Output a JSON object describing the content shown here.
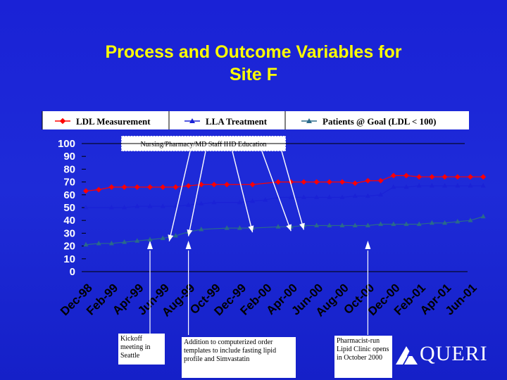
{
  "title": {
    "line1": "Process and Outcome Variables for",
    "line2": "Site F"
  },
  "chart_data": {
    "type": "line",
    "categories": [
      "Dec-98",
      "Feb-99",
      "Apr-99",
      "Jun-99",
      "Aug-99",
      "Oct-99",
      "Dec-99",
      "Feb-00",
      "Apr-00",
      "Jun-00",
      "Aug-00",
      "Oct-00",
      "Dec-00",
      "Feb-01",
      "Apr-01",
      "Jun-01"
    ],
    "x": [
      0,
      1,
      2,
      3,
      4,
      5,
      6,
      7,
      8,
      9,
      10,
      11,
      12,
      13,
      14,
      15,
      16,
      17,
      18,
      19,
      20,
      21,
      22,
      23,
      24,
      25,
      26,
      27,
      28,
      29,
      30,
      31
    ],
    "ylim": [
      0,
      100
    ],
    "yticks": [
      "100",
      "90",
      "80",
      "70",
      "60",
      "50",
      "40",
      "30",
      "20",
      "10",
      "0"
    ],
    "series": [
      {
        "name": "LDL Measurement",
        "color": "#ff0000",
        "marker": "diamond",
        "points": [
          [
            0,
            63
          ],
          [
            1,
            64
          ],
          [
            2,
            66
          ],
          [
            3,
            66
          ],
          [
            4,
            66
          ],
          [
            5,
            66
          ],
          [
            6,
            66
          ],
          [
            7,
            66
          ],
          [
            8,
            67
          ],
          [
            9,
            68
          ],
          [
            10,
            68
          ],
          [
            11,
            68
          ],
          [
            13,
            68
          ],
          [
            15,
            70
          ],
          [
            16,
            70
          ],
          [
            17,
            70
          ],
          [
            18,
            70
          ],
          [
            19,
            70
          ],
          [
            20,
            70
          ],
          [
            21,
            69
          ],
          [
            22,
            71
          ],
          [
            23,
            71
          ],
          [
            24,
            75
          ],
          [
            25,
            75
          ],
          [
            26,
            74
          ],
          [
            27,
            74
          ],
          [
            28,
            74
          ],
          [
            29,
            74
          ],
          [
            30,
            74
          ],
          [
            31,
            74
          ]
        ]
      },
      {
        "name": "LLA Treatment",
        "color": "#1a22d6",
        "marker": "triangle",
        "points": [
          [
            0,
            50
          ],
          [
            2,
            50
          ],
          [
            3,
            50
          ],
          [
            4,
            51
          ],
          [
            5,
            51
          ],
          [
            6,
            51
          ],
          [
            7,
            51
          ],
          [
            8,
            52
          ],
          [
            9,
            53
          ],
          [
            10,
            54
          ],
          [
            12,
            54
          ],
          [
            13,
            55
          ],
          [
            14,
            56
          ],
          [
            15,
            58
          ],
          [
            16,
            58
          ],
          [
            17,
            58
          ],
          [
            18,
            58
          ],
          [
            19,
            58
          ],
          [
            20,
            58
          ],
          [
            21,
            59
          ],
          [
            22,
            59
          ],
          [
            23,
            60
          ],
          [
            24,
            66
          ],
          [
            25,
            66
          ],
          [
            26,
            67
          ],
          [
            27,
            67
          ],
          [
            28,
            67
          ],
          [
            29,
            67
          ],
          [
            30,
            67
          ],
          [
            31,
            67
          ]
        ]
      },
      {
        "name": "Patients @ Goal (LDL < 100)",
        "color": "#2a6a8a",
        "marker": "triangle",
        "points": [
          [
            0,
            21
          ],
          [
            1,
            22
          ],
          [
            2,
            22
          ],
          [
            3,
            23
          ],
          [
            4,
            24
          ],
          [
            5,
            25
          ],
          [
            6,
            26
          ],
          [
            7,
            28
          ],
          [
            8,
            31
          ],
          [
            9,
            33
          ],
          [
            11,
            34
          ],
          [
            12,
            34
          ],
          [
            13,
            34
          ],
          [
            15,
            35
          ],
          [
            16,
            35
          ],
          [
            17,
            36
          ],
          [
            18,
            36
          ],
          [
            19,
            36
          ],
          [
            20,
            36
          ],
          [
            21,
            36
          ],
          [
            22,
            36
          ],
          [
            23,
            37
          ],
          [
            24,
            37
          ],
          [
            25,
            37
          ],
          [
            26,
            37
          ],
          [
            27,
            38
          ],
          [
            28,
            38
          ],
          [
            29,
            39
          ],
          [
            30,
            40
          ],
          [
            31,
            43
          ]
        ]
      }
    ],
    "annotations": {
      "education": "Nursing/Pharmacy/MD Staff IHD Education",
      "kickoff": "Kickoff meeting in Seattle",
      "templates": "Addition to computerized order templates to include fasting lipid profile and Simvastatin",
      "clinic": "Pharmacist-run Lipid Clinic opens in October 2000"
    },
    "arrow_targets_x": [
      6.5,
      8,
      13,
      16,
      17
    ],
    "event_markers_x": [
      5,
      8,
      22
    ],
    "grid": false,
    "legend_position": "top"
  },
  "logo": {
    "text": "QUERI"
  }
}
